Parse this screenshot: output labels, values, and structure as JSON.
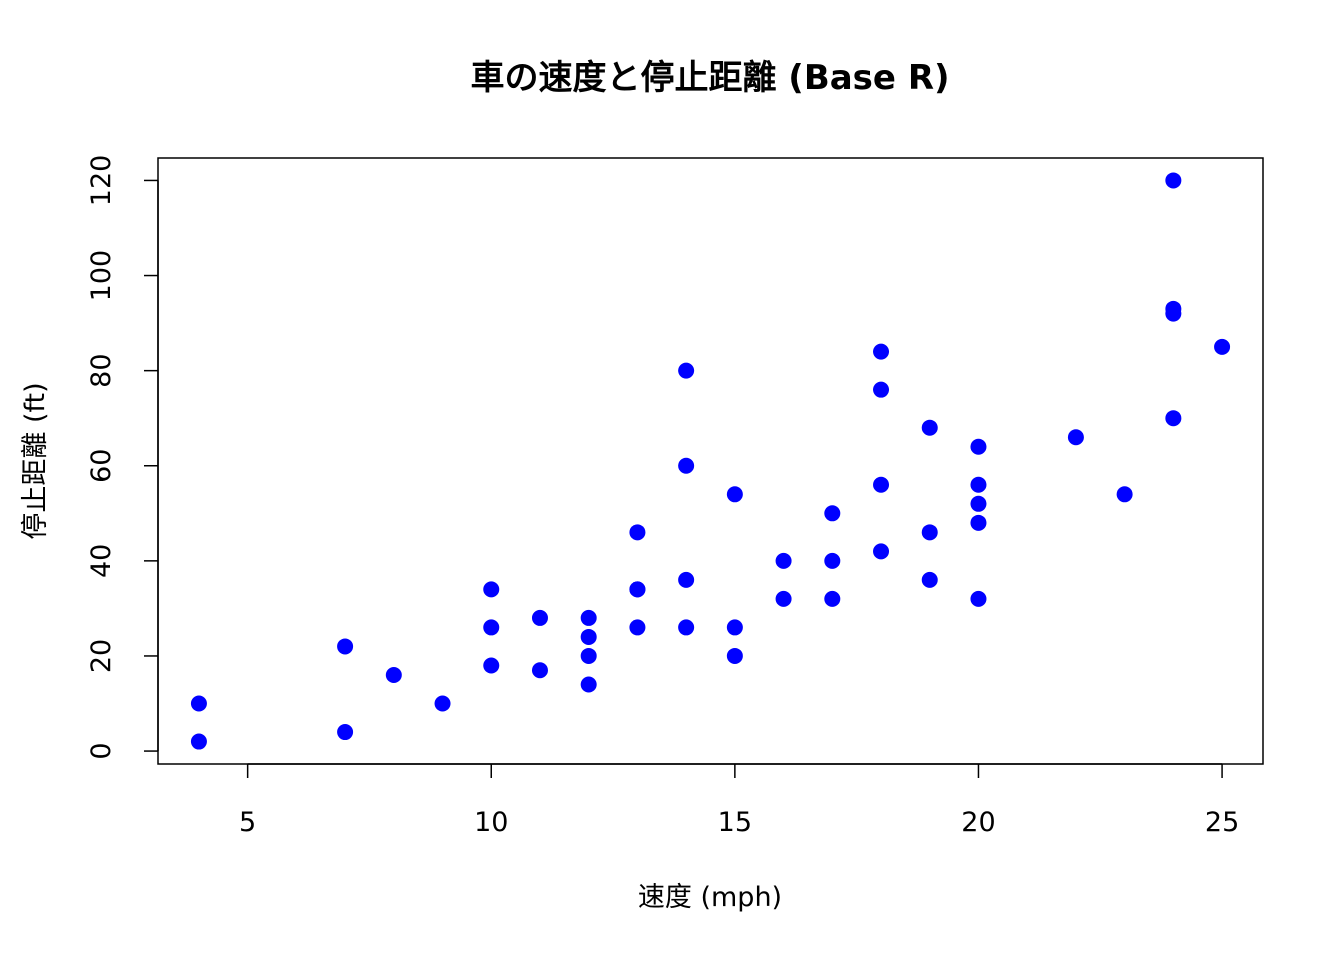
{
  "chart_data": {
    "type": "scatter",
    "title": "車の速度と停止距離 (Base R)",
    "xlabel": "速度 (mph)",
    "ylabel": "停止距離 (ft)",
    "xlim": [
      3.16,
      25.84
    ],
    "ylim": [
      -2.72,
      124.72
    ],
    "x_ticks": [
      5,
      10,
      15,
      20,
      25
    ],
    "y_ticks": [
      0,
      20,
      40,
      60,
      80,
      100,
      120
    ],
    "grid": false,
    "legend": "none",
    "point_color": "#0000ff",
    "series": [
      {
        "points": [
          [
            4,
            2
          ],
          [
            4,
            10
          ],
          [
            7,
            4
          ],
          [
            7,
            22
          ],
          [
            8,
            16
          ],
          [
            9,
            10
          ],
          [
            10,
            18
          ],
          [
            10,
            26
          ],
          [
            10,
            34
          ],
          [
            11,
            17
          ],
          [
            11,
            28
          ],
          [
            12,
            14
          ],
          [
            12,
            20
          ],
          [
            12,
            24
          ],
          [
            12,
            28
          ],
          [
            13,
            26
          ],
          [
            13,
            34
          ],
          [
            13,
            34
          ],
          [
            13,
            46
          ],
          [
            14,
            26
          ],
          [
            14,
            36
          ],
          [
            14,
            60
          ],
          [
            14,
            80
          ],
          [
            15,
            20
          ],
          [
            15,
            26
          ],
          [
            15,
            54
          ],
          [
            16,
            32
          ],
          [
            16,
            40
          ],
          [
            17,
            32
          ],
          [
            17,
            40
          ],
          [
            17,
            50
          ],
          [
            18,
            42
          ],
          [
            18,
            56
          ],
          [
            18,
            76
          ],
          [
            18,
            84
          ],
          [
            19,
            36
          ],
          [
            19,
            46
          ],
          [
            19,
            68
          ],
          [
            20,
            32
          ],
          [
            20,
            48
          ],
          [
            20,
            52
          ],
          [
            20,
            56
          ],
          [
            20,
            64
          ],
          [
            22,
            66
          ],
          [
            23,
            54
          ],
          [
            24,
            70
          ],
          [
            24,
            92
          ],
          [
            24,
            93
          ],
          [
            24,
            120
          ],
          [
            25,
            85
          ]
        ]
      }
    ]
  }
}
